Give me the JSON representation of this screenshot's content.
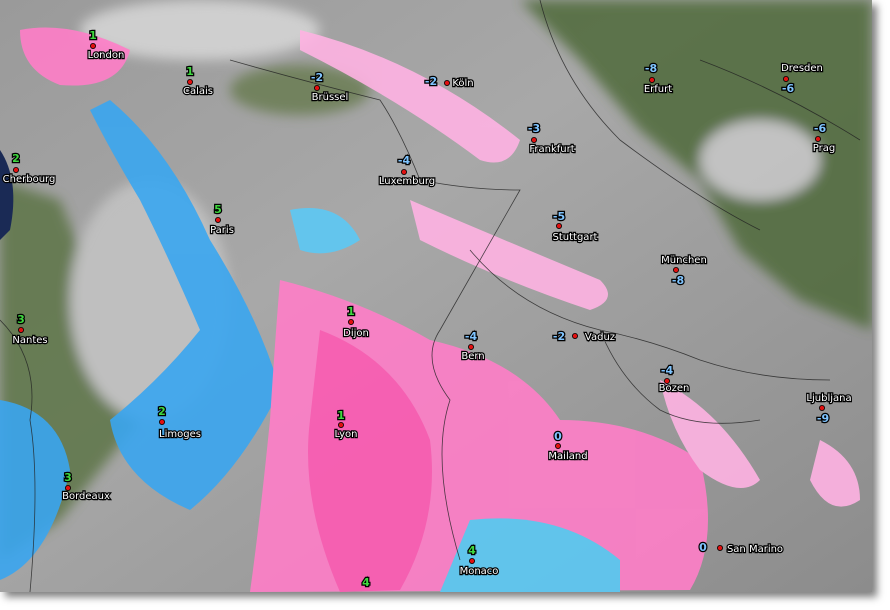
{
  "cities": [
    {
      "name": "London",
      "temp": 1
    },
    {
      "name": "Calais",
      "temp": 1
    },
    {
      "name": "Brüssel",
      "temp": -2
    },
    {
      "name": "Köln",
      "temp": -2
    },
    {
      "name": "Erfurt",
      "temp": -8
    },
    {
      "name": "Dresden",
      "temp": -6
    },
    {
      "name": "Frankfurt",
      "temp": -3
    },
    {
      "name": "Prag",
      "temp": -6
    },
    {
      "name": "Cherbourg",
      "temp": 2
    },
    {
      "name": "Luxemburg",
      "temp": -4
    },
    {
      "name": "Paris",
      "temp": 5
    },
    {
      "name": "Stuttgart",
      "temp": -5
    },
    {
      "name": "München",
      "temp": -8
    },
    {
      "name": "Nantes",
      "temp": 3
    },
    {
      "name": "Dijon",
      "temp": 1
    },
    {
      "name": "Vaduz",
      "temp": -2
    },
    {
      "name": "Bern",
      "temp": -4
    },
    {
      "name": "Bozen",
      "temp": -4
    },
    {
      "name": "Ljubljana",
      "temp": -9
    },
    {
      "name": "Limoges",
      "temp": 2
    },
    {
      "name": "Lyon",
      "temp": 1
    },
    {
      "name": "Mailand",
      "temp": 0
    },
    {
      "name": "Bordeaux",
      "temp": 3
    },
    {
      "name": "Monaco",
      "temp": 4
    },
    {
      "name": "San Marino",
      "temp": 0
    },
    {
      "name": null,
      "temp": 4
    }
  ]
}
